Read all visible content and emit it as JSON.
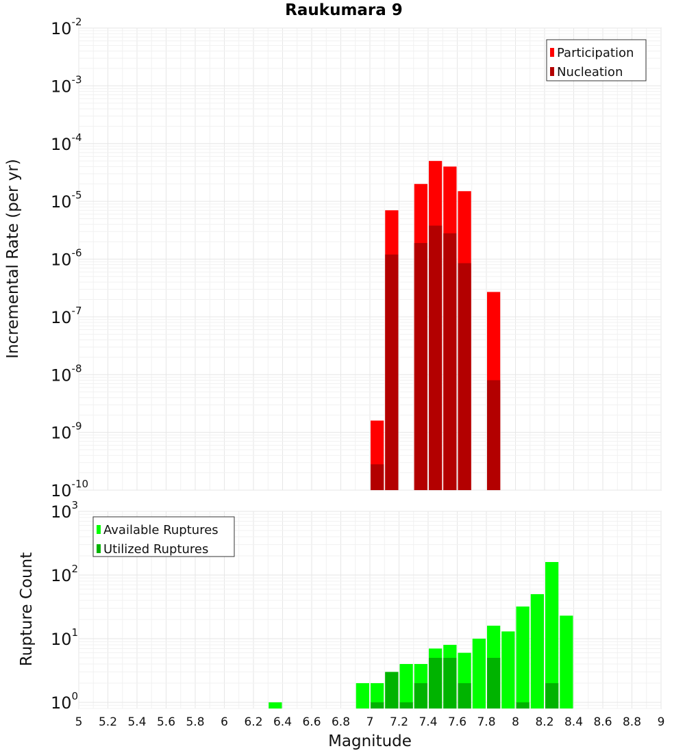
{
  "chart_data": [
    {
      "type": "bar",
      "title": "Raukumara 9",
      "ylabel": "Incremental Rate (per yr)",
      "xlabel": "",
      "yscale": "log",
      "ylim": [
        1e-10,
        0.01
      ],
      "xlim": [
        5,
        9
      ],
      "ytick_exponents": [
        -10,
        -9,
        -8,
        -7,
        -6,
        -5,
        -4,
        -3,
        -2
      ],
      "grid": true,
      "legend": "top-right",
      "x": [
        7.05,
        7.15,
        7.35,
        7.45,
        7.55,
        7.65,
        7.85
      ],
      "series": [
        {
          "name": "Participation",
          "color": "#ff0000",
          "values": [
            1.6e-09,
            7e-06,
            2e-05,
            5e-05,
            4e-05,
            1.5e-05,
            2.7e-07
          ]
        },
        {
          "name": "Nucleation",
          "color": "#b30000",
          "values": [
            2.8e-10,
            1.2e-06,
            1.9e-06,
            3.8e-06,
            2.8e-06,
            8.5e-07,
            8e-09
          ]
        }
      ]
    },
    {
      "type": "bar",
      "title": "",
      "ylabel": "Rupture Count",
      "xlabel": "Magnitude",
      "yscale": "log",
      "ylim": [
        0.8,
        1000
      ],
      "xlim": [
        5,
        9
      ],
      "ytick_exponents": [
        0,
        1,
        2,
        3
      ],
      "xticks": [
        "5",
        "5.2",
        "5.4",
        "5.6",
        "5.8",
        "6",
        "6.2",
        "6.4",
        "6.6",
        "6.8",
        "7",
        "7.2",
        "7.4",
        "7.6",
        "7.8",
        "8",
        "8.2",
        "8.4",
        "8.6",
        "8.8",
        "9"
      ],
      "grid": true,
      "legend": "top-left",
      "x": [
        6.35,
        6.95,
        7.05,
        7.15,
        7.25,
        7.35,
        7.45,
        7.55,
        7.65,
        7.75,
        7.85,
        7.95,
        8.05,
        8.15,
        8.25,
        8.35
      ],
      "series": [
        {
          "name": "Available Ruptures",
          "color": "#00ff00",
          "values": [
            1,
            2,
            2,
            3,
            4,
            4,
            7,
            8,
            6,
            10,
            16,
            13,
            32,
            50,
            160,
            23
          ]
        },
        {
          "name": "Utilized Ruptures",
          "color": "#00b300",
          "values": [
            0,
            0,
            1,
            3,
            1,
            2,
            5,
            5,
            2,
            0,
            5,
            0,
            1,
            0,
            2,
            0
          ]
        }
      ]
    }
  ]
}
